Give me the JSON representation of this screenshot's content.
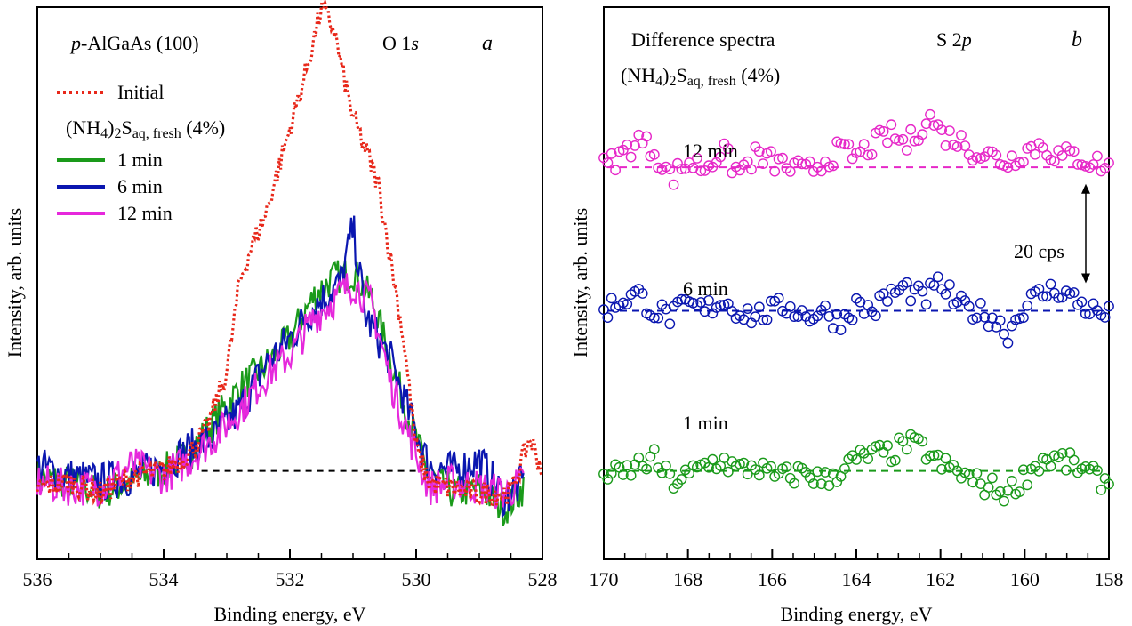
{
  "chart_data": [
    {
      "type": "line",
      "panel_letter": "a",
      "sample_label": "p-AlGaAs (100)",
      "core_level_label": "O 1s",
      "treatment_label": "(NH4)2Saq, fresh (4%)",
      "xlabel": "Binding energy, eV",
      "ylabel": "Intensity, arb. units",
      "xlim": [
        536,
        528
      ],
      "x_reversed": true,
      "x_ticks": [
        536,
        534,
        532,
        530,
        528
      ],
      "x_tick_labels": [
        "536",
        "534",
        "532",
        "530",
        "528"
      ],
      "y_ticks_shown": false,
      "ylim": [
        0,
        100
      ],
      "baseline": {
        "y": 16,
        "from_x": 533.4,
        "to_x": 529.9,
        "style": "dashed",
        "color": "#000000"
      },
      "series": [
        {
          "name": "Initial",
          "style": "dotted",
          "color": "#e8281a",
          "x": [
            536.0,
            535.5,
            535.0,
            534.5,
            534.0,
            533.6,
            533.3,
            533.0,
            532.8,
            532.6,
            532.4,
            532.2,
            532.0,
            531.8,
            531.6,
            531.5,
            531.4,
            531.3,
            531.2,
            531.0,
            530.8,
            530.6,
            530.4,
            530.2,
            530.0,
            529.8,
            529.5,
            529.0,
            528.5,
            528.2,
            528.0
          ],
          "y": [
            13,
            14,
            12,
            15,
            16,
            19,
            24,
            34,
            50,
            57,
            62,
            70,
            78,
            86,
            95,
            100,
            98,
            96,
            90,
            80,
            74,
            68,
            54,
            40,
            20,
            14,
            13,
            12,
            12,
            22,
            16
          ]
        },
        {
          "name": "1 min",
          "style": "solid",
          "color": "#1a9a1a",
          "x": [
            536.0,
            535.5,
            535.0,
            534.5,
            534.0,
            533.6,
            533.2,
            532.8,
            532.4,
            532.0,
            531.6,
            531.3,
            531.0,
            530.7,
            530.4,
            530.1,
            529.8,
            529.4,
            529.0,
            528.6,
            528.3
          ],
          "y": [
            15,
            14,
            12,
            14,
            16,
            19,
            25,
            31,
            35,
            40,
            48,
            51,
            52,
            47,
            36,
            25,
            15,
            12,
            13,
            9,
            13
          ]
        },
        {
          "name": "6 min",
          "style": "solid",
          "color": "#0a16b0",
          "x": [
            536.0,
            535.5,
            535.0,
            534.5,
            534.0,
            533.6,
            533.2,
            532.8,
            532.4,
            532.0,
            531.6,
            531.2,
            531.0,
            530.8,
            530.4,
            530.1,
            529.8,
            529.4,
            529.0,
            528.6,
            528.3
          ],
          "y": [
            17,
            15,
            14,
            15,
            17,
            20,
            22,
            27,
            35,
            40,
            46,
            50,
            60,
            44,
            36,
            26,
            17,
            16,
            18,
            11,
            14
          ]
        },
        {
          "name": "12 min",
          "style": "solid",
          "color": "#e628dc",
          "x": [
            536.0,
            535.5,
            535.0,
            534.5,
            534.0,
            533.6,
            533.2,
            532.8,
            532.4,
            532.0,
            531.6,
            531.2,
            531.0,
            530.7,
            530.4,
            530.1,
            529.8,
            529.4,
            529.0,
            528.6,
            528.3
          ],
          "y": [
            14,
            13,
            13,
            17,
            15,
            18,
            22,
            27,
            33,
            37,
            44,
            48,
            50,
            46,
            32,
            22,
            13,
            14,
            13,
            12,
            14
          ]
        }
      ]
    },
    {
      "type": "scatter",
      "panel_letter": "b",
      "title": "Difference spectra",
      "core_level_label": "S 2p",
      "treatment_label": "(NH4)2Saq, fresh (4%)",
      "xlabel": "Binding energy, eV",
      "ylabel": "Intensity, arb. units",
      "xlim": [
        170,
        158
      ],
      "x_reversed": true,
      "x_ticks": [
        170,
        168,
        166,
        164,
        162,
        160,
        158
      ],
      "x_tick_labels": [
        "170",
        "168",
        "166",
        "164",
        "162",
        "160",
        "158"
      ],
      "y_ticks_shown": false,
      "ylim": [
        0,
        100
      ],
      "scale_bar": {
        "label": "20 cps",
        "cps": 20,
        "from_y": 68,
        "to_y": 50
      },
      "series": [
        {
          "name": "12 min",
          "color": "#e628c8",
          "baseline_y": 71,
          "x": [
            170.0,
            169.6,
            169.2,
            168.8,
            168.4,
            168.0,
            167.6,
            167.2,
            166.8,
            166.4,
            166.0,
            165.6,
            165.2,
            164.8,
            164.4,
            164.0,
            163.6,
            163.2,
            162.8,
            162.4,
            162.2,
            162.0,
            161.6,
            161.2,
            160.8,
            160.4,
            160.0,
            159.6,
            159.2,
            158.8,
            158.4,
            158.0
          ],
          "y": [
            71,
            73,
            76,
            74,
            69,
            72,
            71,
            74,
            70,
            73,
            72,
            71,
            70,
            72,
            74,
            73,
            75,
            77,
            75,
            79,
            80,
            77,
            76,
            74,
            73,
            72,
            74,
            75,
            73,
            73,
            72,
            71
          ]
        },
        {
          "name": "6 min",
          "color": "#0a16b0",
          "baseline_y": 45,
          "x": [
            170.0,
            169.6,
            169.2,
            168.8,
            168.4,
            168.0,
            167.6,
            167.2,
            166.8,
            166.4,
            166.0,
            165.6,
            165.2,
            164.8,
            164.4,
            164.0,
            163.6,
            163.2,
            162.8,
            162.4,
            162.0,
            161.6,
            161.2,
            160.8,
            160.4,
            160.0,
            159.6,
            159.2,
            158.8,
            158.4,
            158.0
          ],
          "y": [
            45,
            47,
            48,
            45,
            44,
            46,
            45,
            47,
            45,
            44,
            45,
            46,
            44,
            45,
            43,
            46,
            45,
            48,
            49,
            47,
            50,
            46,
            45,
            44,
            41,
            46,
            48,
            49,
            47,
            45,
            44
          ]
        },
        {
          "name": "1 min",
          "color": "#1a9a1a",
          "baseline_y": 16,
          "x": [
            170.0,
            169.6,
            169.2,
            168.8,
            168.4,
            168.0,
            167.6,
            167.2,
            166.8,
            166.4,
            166.0,
            165.6,
            165.2,
            164.8,
            164.4,
            164.0,
            163.6,
            163.2,
            162.8,
            162.4,
            162.0,
            161.6,
            161.2,
            160.8,
            160.4,
            160.0,
            159.6,
            159.2,
            158.8,
            158.4,
            158.0
          ],
          "y": [
            16,
            15,
            17,
            18,
            14,
            15,
            17,
            18,
            16,
            17,
            15,
            15,
            16,
            14,
            16,
            18,
            19,
            19,
            21,
            20,
            17,
            16,
            14,
            13,
            12,
            15,
            18,
            18,
            17,
            15,
            14
          ]
        }
      ]
    }
  ]
}
